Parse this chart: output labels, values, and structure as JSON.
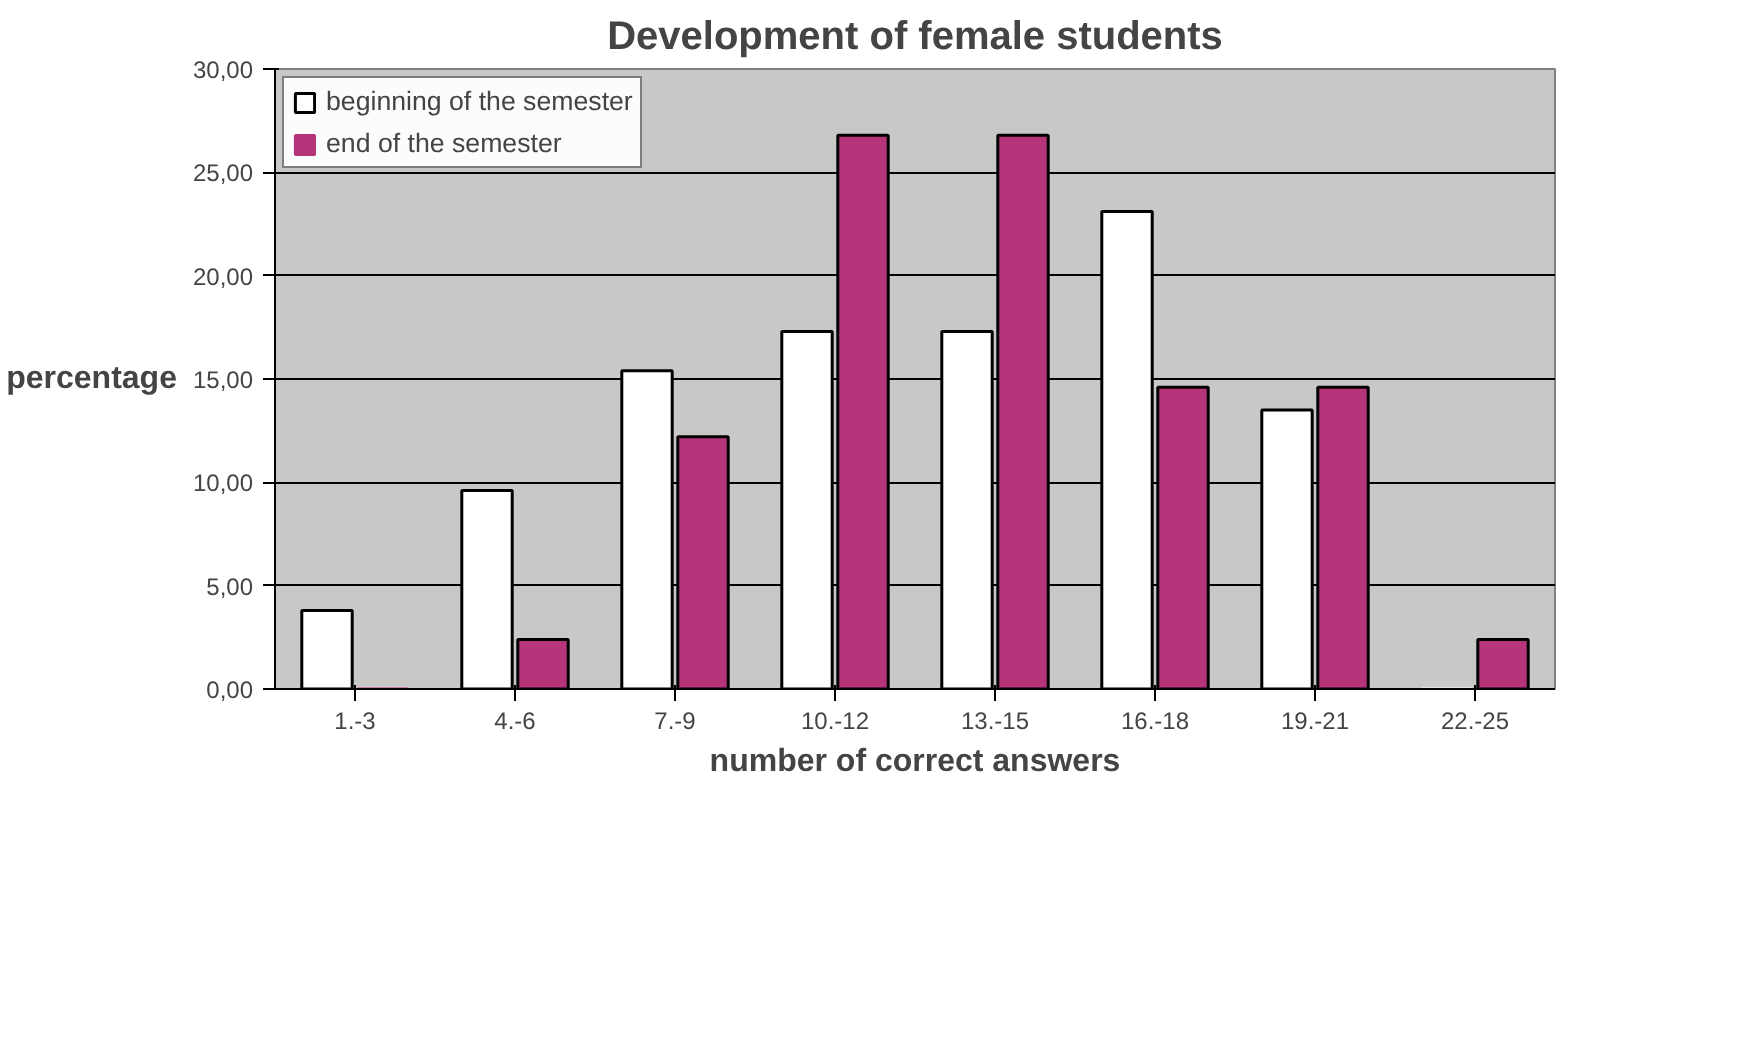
{
  "chart_data": {
    "type": "bar",
    "title": "Development of female students",
    "xlabel": "number of correct answers",
    "ylabel": "percentage",
    "categories": [
      "1.-3",
      "4.-6",
      "7.-9",
      "10.-12",
      "13.-15",
      "16.-18",
      "19.-21",
      "22.-25"
    ],
    "series": [
      {
        "name": "beginning of the semester",
        "color": "#ffffff",
        "values": [
          3.8,
          9.6,
          15.4,
          17.3,
          17.3,
          23.1,
          13.5,
          0
        ]
      },
      {
        "name": "end of the semester",
        "color": "#b5347a",
        "values": [
          0,
          2.4,
          12.2,
          26.8,
          26.8,
          14.6,
          14.6,
          2.4
        ]
      }
    ],
    "ylim": [
      0,
      30
    ],
    "yticks": [
      {
        "value": 0,
        "label": "0,00"
      },
      {
        "value": 5,
        "label": "5,00"
      },
      {
        "value": 10,
        "label": "10,00"
      },
      {
        "value": 15,
        "label": "15,00"
      },
      {
        "value": 20,
        "label": "20,00"
      },
      {
        "value": 25,
        "label": "25,00"
      },
      {
        "value": 30,
        "label": "30,00"
      }
    ],
    "grid": "y",
    "legend": "top left"
  }
}
